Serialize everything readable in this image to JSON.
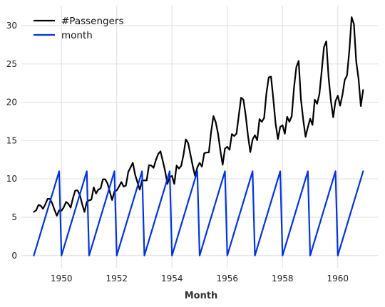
{
  "chart_data": {
    "type": "line",
    "title": "",
    "xlabel": "Month",
    "ylabel": "",
    "x_start": "1949-01",
    "x_step": "month",
    "xlim": [
      1948.55,
      1961.45
    ],
    "ylim": [
      -1.6,
      32.6
    ],
    "xticks": [
      1950,
      1952,
      1954,
      1956,
      1958,
      1960
    ],
    "yticks": [
      0,
      5,
      10,
      15,
      20,
      25,
      30
    ],
    "grid": true,
    "legend_position": "top-left",
    "series": [
      {
        "name": "#Passengers",
        "color": "#000000",
        "values": [
          5.7,
          5.9,
          6.6,
          6.5,
          6.1,
          6.7,
          7.4,
          7.4,
          6.8,
          5.95,
          5.2,
          5.9,
          5.85,
          6.3,
          7.0,
          6.75,
          6.25,
          7.5,
          8.5,
          8.5,
          7.9,
          6.7,
          5.7,
          7.0,
          7.2,
          7.3,
          8.9,
          8.1,
          8.6,
          8.75,
          9.95,
          9.95,
          9.4,
          8.3,
          7.25,
          8.35,
          8.5,
          9.0,
          9.6,
          9.0,
          9.15,
          10.9,
          11.5,
          12.1,
          10.55,
          9.55,
          8.6,
          9.8,
          9.8,
          9.8,
          11.8,
          11.75,
          11.45,
          12.45,
          13.25,
          13.6,
          12.35,
          11.05,
          9.35,
          10.2,
          10.4,
          9.35,
          11.75,
          11.35,
          11.7,
          13.15,
          15.15,
          14.7,
          13.2,
          11.7,
          10.4,
          11.5,
          12.1,
          11.6,
          13.35,
          13.45,
          13.45,
          16.15,
          18.2,
          17.4,
          15.9,
          13.7,
          11.85,
          13.95,
          14.2,
          13.8,
          15.85,
          15.6,
          15.9,
          18.25,
          20.6,
          20.35,
          18.3,
          15.65,
          13.5,
          15.15,
          15.7,
          15.05,
          17.8,
          17.45,
          17.95,
          21.15,
          23.25,
          23.35,
          20.4,
          17.2,
          15.2,
          16.8,
          17.0,
          15.9,
          18.1,
          17.45,
          18.2,
          21.95,
          24.6,
          25.4,
          20.35,
          17.7,
          15.5,
          16.75,
          17.85,
          17.05,
          20.35,
          19.8,
          21.05,
          24.05,
          27.2,
          27.95,
          23.25,
          20.2,
          18.05,
          20.15,
          20.85,
          19.55,
          20.95,
          22.9,
          23.5,
          26.7,
          31.1,
          30.2,
          25.3,
          23.1,
          19.5,
          21.6
        ]
      },
      {
        "name": "month",
        "color": "#0033e6",
        "values": [
          0,
          1,
          2,
          3,
          4,
          5,
          6,
          7,
          8,
          9,
          10,
          11,
          0,
          1,
          2,
          3,
          4,
          5,
          6,
          7,
          8,
          9,
          10,
          11,
          0,
          1,
          2,
          3,
          4,
          5,
          6,
          7,
          8,
          9,
          10,
          11,
          0,
          1,
          2,
          3,
          4,
          5,
          6,
          7,
          8,
          9,
          10,
          11,
          0,
          1,
          2,
          3,
          4,
          5,
          6,
          7,
          8,
          9,
          10,
          11,
          0,
          1,
          2,
          3,
          4,
          5,
          6,
          7,
          8,
          9,
          10,
          11,
          0,
          1,
          2,
          3,
          4,
          5,
          6,
          7,
          8,
          9,
          10,
          11,
          0,
          1,
          2,
          3,
          4,
          5,
          6,
          7,
          8,
          9,
          10,
          11,
          0,
          1,
          2,
          3,
          4,
          5,
          6,
          7,
          8,
          9,
          10,
          11,
          0,
          1,
          2,
          3,
          4,
          5,
          6,
          7,
          8,
          9,
          10,
          11,
          0,
          1,
          2,
          3,
          4,
          5,
          6,
          7,
          8,
          9,
          10,
          11,
          0,
          1,
          2,
          3,
          4,
          5,
          6,
          7,
          8,
          9,
          10,
          11
        ]
      }
    ]
  }
}
